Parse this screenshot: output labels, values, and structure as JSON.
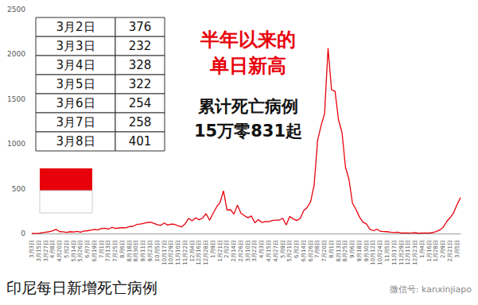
{
  "chart_data": {
    "type": "line",
    "title": "印尼每日新增死亡病例",
    "categories": [
      "3月3日",
      null,
      "3月15日",
      null,
      "3月27日",
      null,
      "4月8日",
      null,
      "4月20日",
      null,
      "5月2日",
      null,
      "5月14日",
      null,
      "5月26日",
      null,
      "6月7日",
      null,
      "6月19日",
      null,
      "7月1日",
      null,
      "7月13日",
      null,
      "7月25日",
      null,
      "8月6日",
      null,
      "8月18日",
      null,
      "8月30日",
      null,
      "9月11日",
      null,
      "9月23日",
      null,
      "10月5日",
      null,
      "10月17日",
      null,
      "10月29日",
      null,
      "11月10日",
      null,
      "11月22日",
      null,
      "12月4日",
      null,
      "12月16日",
      null,
      "12月28日",
      null,
      "1月9日",
      null,
      "1月21日",
      null,
      "2月2日",
      null,
      "2月14日",
      null,
      "2月26日",
      null,
      "3月10日",
      null,
      "3月22日",
      null,
      "4月3日",
      null,
      "4月15日",
      null,
      "4月27日",
      null,
      "5月9日",
      null,
      "5月21日",
      null,
      "6月2日",
      null,
      "6月14日",
      null,
      "6月26日",
      null,
      "7月8日",
      null,
      "7月20日",
      null,
      "8月1日",
      null,
      "8月13日",
      null,
      "8月25日",
      null,
      "9月6日",
      null,
      "9月18日",
      null,
      "9月30日",
      null,
      "10月12日",
      null,
      "10月24日",
      null,
      "11月5日",
      null,
      "11月17日",
      null,
      "11月29日",
      null,
      "12月11日",
      null,
      "12月23日",
      null,
      "1月4日",
      null,
      "1月16日",
      null,
      "1月28日",
      null,
      "2月9日",
      null,
      "2月21日",
      null,
      "3月5日",
      null
    ],
    "values": [
      0,
      0,
      1,
      10,
      15,
      20,
      30,
      47,
      20,
      18,
      13,
      20,
      16,
      24,
      15,
      27,
      31,
      38,
      45,
      41,
      56,
      58,
      49,
      69,
      57,
      62,
      65,
      64,
      79,
      80,
      100,
      105,
      112,
      122,
      128,
      115,
      99,
      91,
      118,
      94,
      106,
      102,
      85,
      74,
      109,
      169,
      142,
      175,
      154,
      173,
      222,
      149,
      224,
      295,
      346,
      476,
      263,
      266,
      216,
      318,
      226,
      200,
      176,
      196,
      120,
      155,
      124,
      135,
      131,
      145,
      150,
      149,
      171,
      95,
      191,
      163,
      145,
      168,
      255,
      291,
      355,
      539,
      1040,
      1205,
      1338,
      2069,
      1604,
      1588,
      1270,
      1128,
      740,
      605,
      339,
      270,
      185,
      127,
      107,
      47,
      31,
      49,
      25,
      21,
      20,
      15,
      13,
      15,
      5,
      8,
      6,
      7,
      9,
      3,
      6,
      6,
      5,
      11,
      21,
      38,
      69,
      131,
      177,
      230,
      322,
      401
    ],
    "color": "#e8000b",
    "ylim": [
      0,
      2500
    ],
    "yticks": [
      0,
      500,
      1000,
      1500,
      2000,
      2500
    ],
    "grid": false,
    "annotations": [
      {
        "lines": [
          "半年以来的",
          "单日新高"
        ],
        "color": "#e8000b"
      },
      {
        "lines": [
          "累计死亡病例",
          "15万零831起"
        ],
        "color": "#111111"
      }
    ],
    "table": {
      "rows": [
        [
          "3月2日",
          376
        ],
        [
          "3月3日",
          232
        ],
        [
          "3月4日",
          328
        ],
        [
          "3月5日",
          322
        ],
        [
          "3月6日",
          254
        ],
        [
          "3月7日",
          258
        ],
        [
          "3月8日",
          401
        ]
      ]
    },
    "source": "微信号: kanxinjiapo"
  }
}
